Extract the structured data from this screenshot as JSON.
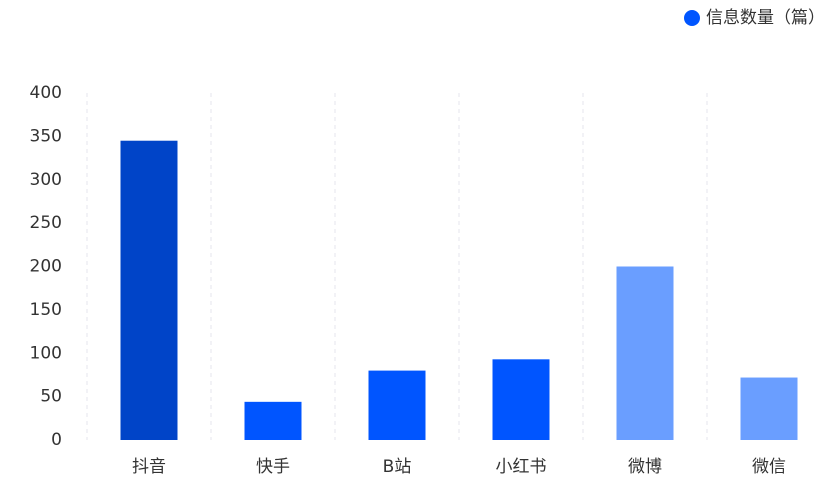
{
  "chart_data": {
    "type": "bar",
    "categories": [
      "抖音",
      "快手",
      "B站",
      "小红书",
      "微博",
      "微信"
    ],
    "series": [
      {
        "name": "信息数量（篇）",
        "color": "#0055ff",
        "values": [
          345,
          44,
          80,
          93,
          200,
          72
        ]
      }
    ],
    "bar_colors": [
      "#0044c8",
      "#0055ff",
      "#0055ff",
      "#0055ff",
      "#6a9eff",
      "#6a9eff"
    ],
    "ylim": [
      0,
      400
    ],
    "yticks": [
      0,
      50,
      100,
      150,
      200,
      250,
      300,
      350,
      400
    ],
    "legend": "top-right"
  }
}
